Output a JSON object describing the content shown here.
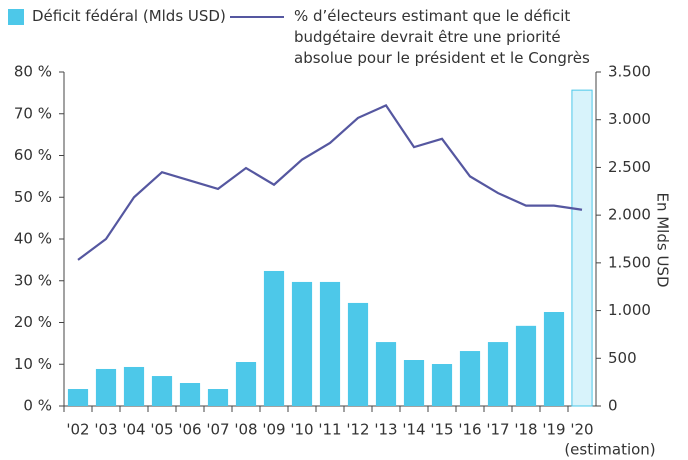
{
  "chart_data": {
    "type": "combo",
    "categories": [
      "'02",
      "'03",
      "'04",
      "'05",
      "'06",
      "'07",
      "'08",
      "'09",
      "'10",
      "'11",
      "'12",
      "'13",
      "'14",
      "'15",
      "'16",
      "'17",
      "'18",
      "'19",
      "'20"
    ],
    "annotations": [
      "(estimation)"
    ],
    "series": [
      {
        "name": "Déficit fédéral (Mlds USD)",
        "type": "bar",
        "axis": "y2",
        "color": "#4dc8e9",
        "colors": [
          "#4dc8e9",
          "#4dc8e9",
          "#4dc8e9",
          "#4dc8e9",
          "#4dc8e9",
          "#4dc8e9",
          "#4dc8e9",
          "#4dc8e9",
          "#4dc8e9",
          "#4dc8e9",
          "#4dc8e9",
          "#4dc8e9",
          "#4dc8e9",
          "#4dc8e9",
          "#4dc8e9",
          "#4dc8e9",
          "#4dc8e9",
          "#4dc8e9",
          "#d8f3fb"
        ],
        "values": [
          178,
          388,
          409,
          314,
          241,
          178,
          461,
          1415,
          1300,
          1300,
          1080,
          670,
          482,
          440,
          576,
          670,
          840,
          985,
          3310
        ]
      },
      {
        "name": "% d’électeurs estimant que le déficit budgétaire devrait être une priorité absolue pour le président et le Congrès",
        "type": "line",
        "axis": "y",
        "color": "#5557a0",
        "values": [
          35,
          40,
          50,
          56,
          54,
          52,
          57,
          53,
          59,
          63,
          69,
          72,
          62,
          64,
          55,
          51,
          48,
          48,
          47
        ]
      }
    ],
    "ylim": [
      0,
      80
    ],
    "yticks": [
      {
        "value": 0,
        "label": "0 %"
      },
      {
        "value": 10,
        "label": "10 %"
      },
      {
        "value": 20,
        "label": "20 %"
      },
      {
        "value": 30,
        "label": "30 %"
      },
      {
        "value": 40,
        "label": "40 %"
      },
      {
        "value": 50,
        "label": "50 %"
      },
      {
        "value": 60,
        "label": "60 %"
      },
      {
        "value": 70,
        "label": "70 %"
      },
      {
        "value": 80,
        "label": "80 %"
      }
    ],
    "y2lim": [
      0,
      3500
    ],
    "y2ticks": [
      0,
      500,
      {
        "value": 1000,
        "label": "1.000"
      },
      {
        "value": 1500,
        "label": "1.500"
      },
      {
        "value": 2000,
        "label": "2.000"
      },
      {
        "value": 2500,
        "label": "2.500"
      },
      {
        "value": 3000,
        "label": "3.000"
      },
      {
        "value": 3500,
        "label": "3.500"
      }
    ],
    "y2label": "En Mlds USD"
  }
}
